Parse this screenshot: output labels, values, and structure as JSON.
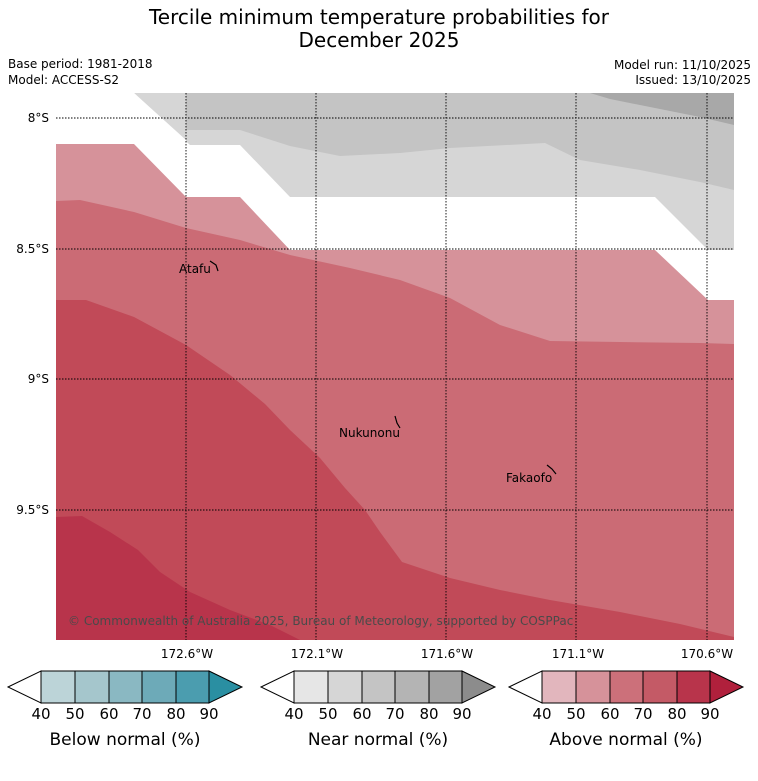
{
  "title_line1": "Tercile minimum temperature probabilities for",
  "title_line2": "December 2025",
  "base_period": "Base period: 1981-2018",
  "model": "Model: ACCESS-S2",
  "model_run": "Model run: 11/10/2025",
  "issued": "Issued: 13/10/2025",
  "lat_labels": [
    "8°S",
    "8.5°S",
    "9°S",
    "9.5°S"
  ],
  "lon_labels": [
    "172.6°W",
    "172.1°W",
    "171.6°W",
    "171.1°W",
    "170.6°W"
  ],
  "places": [
    "Atafu",
    "Nukunonu",
    "Fakaofo"
  ],
  "credit": "© Commonwealth of Australia 2025, Bureau of Meteorology, supported by COSPPac",
  "colorbars": [
    {
      "label": "Below normal (%)",
      "ticks": [
        "40",
        "50",
        "60",
        "70",
        "80",
        "90"
      ],
      "colors": [
        "#bcd4d8",
        "#a5c6cc",
        "#8ab8c2",
        "#6daab8",
        "#4b9daf",
        "#2a8fa2"
      ]
    },
    {
      "label": "Near normal (%)",
      "ticks": [
        "40",
        "50",
        "60",
        "70",
        "80",
        "90"
      ],
      "colors": [
        "#e6e6e6",
        "#d6d6d6",
        "#c4c4c4",
        "#b4b4b4",
        "#a2a2a2",
        "#8c8c8c"
      ]
    },
    {
      "label": "Above normal (%)",
      "ticks": [
        "40",
        "50",
        "60",
        "70",
        "80",
        "90"
      ],
      "colors": [
        "#e2b6bd",
        "#d6929a",
        "#cc707a",
        "#c45a66",
        "#b8344b",
        "#b0203c"
      ]
    }
  ]
}
